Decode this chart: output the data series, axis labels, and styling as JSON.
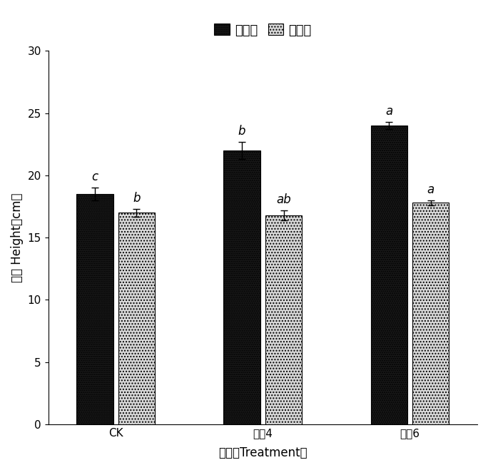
{
  "categories": [
    "CK",
    "堆肥4",
    "堆肥6"
  ],
  "series1_name": "高羊茄",
  "series2_name": "黑麦草",
  "series1_values": [
    18.5,
    22.0,
    24.0
  ],
  "series2_values": [
    17.0,
    16.8,
    17.8
  ],
  "series1_errors": [
    0.5,
    0.7,
    0.3
  ],
  "series2_errors": [
    0.3,
    0.4,
    0.2
  ],
  "series1_letters": [
    "c",
    "b",
    "a"
  ],
  "series2_letters": [
    "b",
    "ab",
    "a"
  ],
  "ylabel": "株高 Height（cm）",
  "xlabel": "处理（Treatment）",
  "ylim": [
    0,
    30
  ],
  "yticks": [
    0,
    5,
    10,
    15,
    20,
    25,
    30
  ],
  "bar_width": 0.3,
  "series1_color": "#1a1a1a",
  "series2_color": "#d8d8d8",
  "axis_fontsize": 12,
  "tick_fontsize": 11,
  "letter_fontsize": 12,
  "legend_fontsize": 13,
  "background_color": "#ffffff",
  "figsize": [
    6.84,
    6.59
  ],
  "dpi": 100
}
